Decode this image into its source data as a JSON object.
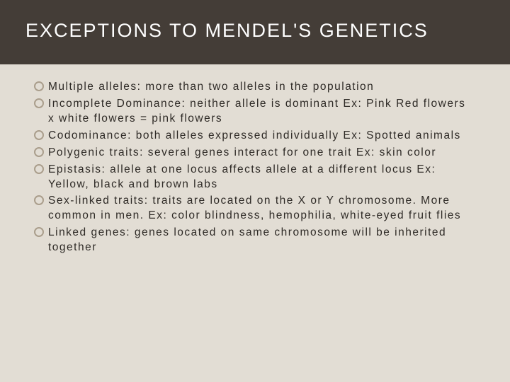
{
  "slide": {
    "title": "EXCEPTIONS TO MENDEL'S GENETICS",
    "title_bar_bg": "#443d37",
    "title_color": "#ffffff",
    "title_fontsize": 27,
    "title_letter_spacing": 2,
    "body_bg": "#e2ddd4",
    "bullet_border_color": "#aa9e8c",
    "bullet_text_color": "#2e2a26",
    "bullet_fontsize": 15.5,
    "bullet_letter_spacing": 1.5,
    "bullets": [
      "Multiple alleles:  more than two alleles in the population",
      "Incomplete Dominance:  neither allele is dominant Ex: Pink Red flowers x white flowers = pink flowers",
      "Codominance: both alleles expressed individually Ex: Spotted animals",
      "Polygenic traits: several genes interact for one trait Ex: skin color",
      "Epistasis: allele at one locus affects allele at a different locus Ex: Yellow, black and brown labs",
      "Sex-linked traits:  traits are located on the X or Y chromosome.  More common in men.  Ex: color blindness, hemophilia, white-eyed fruit flies",
      "Linked genes: genes located on same chromosome will be inherited together"
    ]
  }
}
